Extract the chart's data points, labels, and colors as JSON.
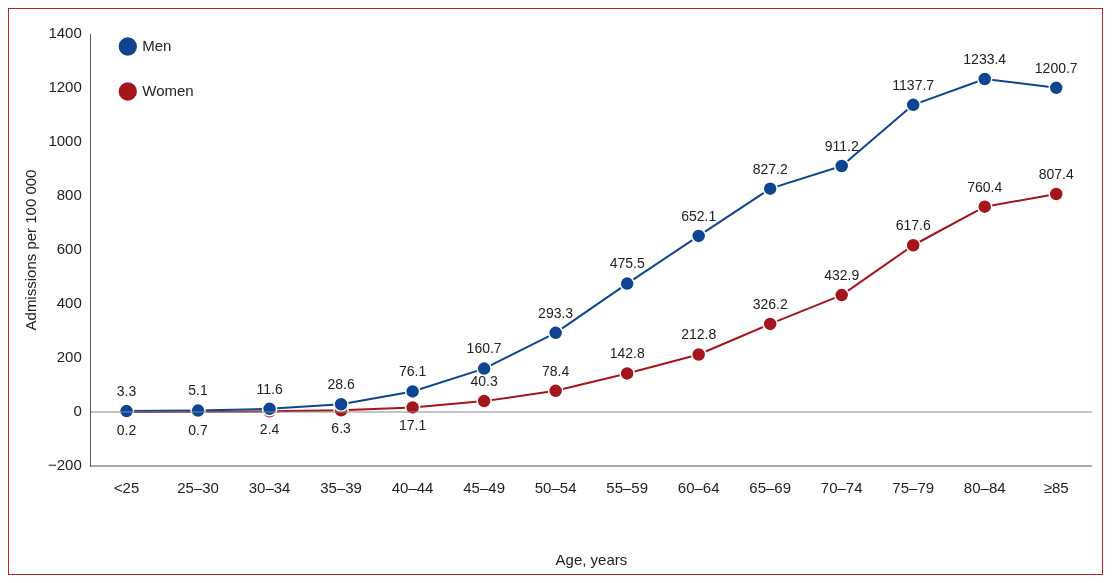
{
  "chart_data": {
    "type": "line",
    "xlabel": "Age, years",
    "ylabel": "Admissions per 100 000",
    "categories": [
      "<25",
      "25–30",
      "30–34",
      "35–39",
      "40–44",
      "45–49",
      "50–54",
      "55–59",
      "60–64",
      "65–69",
      "70–74",
      "75–79",
      "80–84",
      "≥85"
    ],
    "series": [
      {
        "name": "Men",
        "color": "#0e4592",
        "values": [
          3.3,
          5.1,
          11.6,
          28.6,
          76.1,
          160.7,
          293.3,
          475.5,
          652.1,
          827.2,
          911.2,
          1137.7,
          1233.4,
          1200.7
        ]
      },
      {
        "name": "Women",
        "color": "#a6141c",
        "values": [
          0.2,
          0.7,
          2.4,
          6.3,
          17.1,
          40.3,
          78.4,
          142.8,
          212.8,
          326.2,
          432.9,
          617.6,
          760.4,
          807.4
        ]
      }
    ],
    "ylim": [
      -200,
      1400
    ],
    "yticks": [
      {
        "value": -200,
        "label": "−200"
      },
      0,
      200,
      400,
      600,
      800,
      1000,
      1200,
      1400
    ],
    "ref_lines": [
      {
        "axis": "y",
        "value": 0,
        "color": "#888888"
      }
    ],
    "data_labels": true,
    "legend": "top left",
    "marker": "circle",
    "line_style": "solid",
    "grid": false
  }
}
